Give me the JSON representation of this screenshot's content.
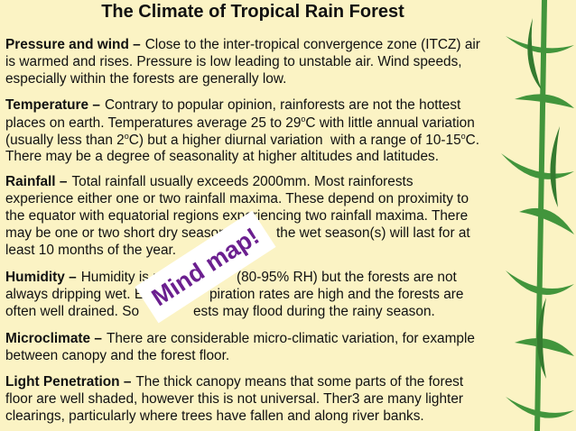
{
  "title": "The Climate of Tropical Rain Forest",
  "paragraphs": [
    {
      "heading": "Pressure and wind –",
      "lines": [
        [
          "Close to the inter-tropical convergence zone (ITCZ) air"
        ],
        [
          "is warmed and rises. Pressure is low leading to unstable air. Wind speeds,"
        ],
        [
          "especially within the forests are generally low."
        ]
      ]
    },
    {
      "heading": "Temperature –",
      "lines": [
        [
          "Contrary to popular opinion, rainforests are not the hottest"
        ],
        [
          "places on earth. Temperatures average 25 to 29",
          {
            "text": "o",
            "sup": true
          },
          "C with little annual variation"
        ],
        [
          "(usually less than 2",
          {
            "text": "o",
            "sup": true
          },
          "C) but a higher diurnal variation  with a range of 10-15",
          {
            "text": "o",
            "sup": true
          },
          "C."
        ],
        [
          "There may be a degree of seasonality at higher altitudes and latitudes."
        ]
      ]
    },
    {
      "heading": "Rainfall –",
      "lines": [
        [
          "Total rainfall usually exceeds 2000mm. Most rainforests"
        ],
        [
          "experience either one or two rainfall maxima. These depend on proximity to"
        ],
        [
          "the equator with equatorial regions experiencing two rainfall maxima. There"
        ],
        [
          "may be one or two short dry season",
          "the wet season(s) will last for at"
        ],
        [
          "least 10 months of the year."
        ]
      ]
    },
    {
      "heading": "Humidity –",
      "lines": [
        [
          "Humidity is us",
          "(80-95% RH) but the forests are not"
        ],
        [
          "always dripping wet. E",
          "piration rates are high and the forests are"
        ],
        [
          "often well drained. So",
          "ests may flood during the rainy season."
        ]
      ]
    },
    {
      "heading": "Microclimate –",
      "lines": [
        [
          "There are considerable micro-climatic variation, for example"
        ],
        [
          "between canopy and the forest floor."
        ]
      ]
    },
    {
      "heading": "Light Penetration –",
      "lines": [
        [
          "The thick canopy means that some parts of the forest"
        ],
        [
          "floor are well shaded, however this is not universal. Ther3 are many lighter"
        ],
        [
          "clearings, particularly where trees have fallen and along river banks."
        ]
      ]
    }
  ],
  "sticker": "Mind map!"
}
